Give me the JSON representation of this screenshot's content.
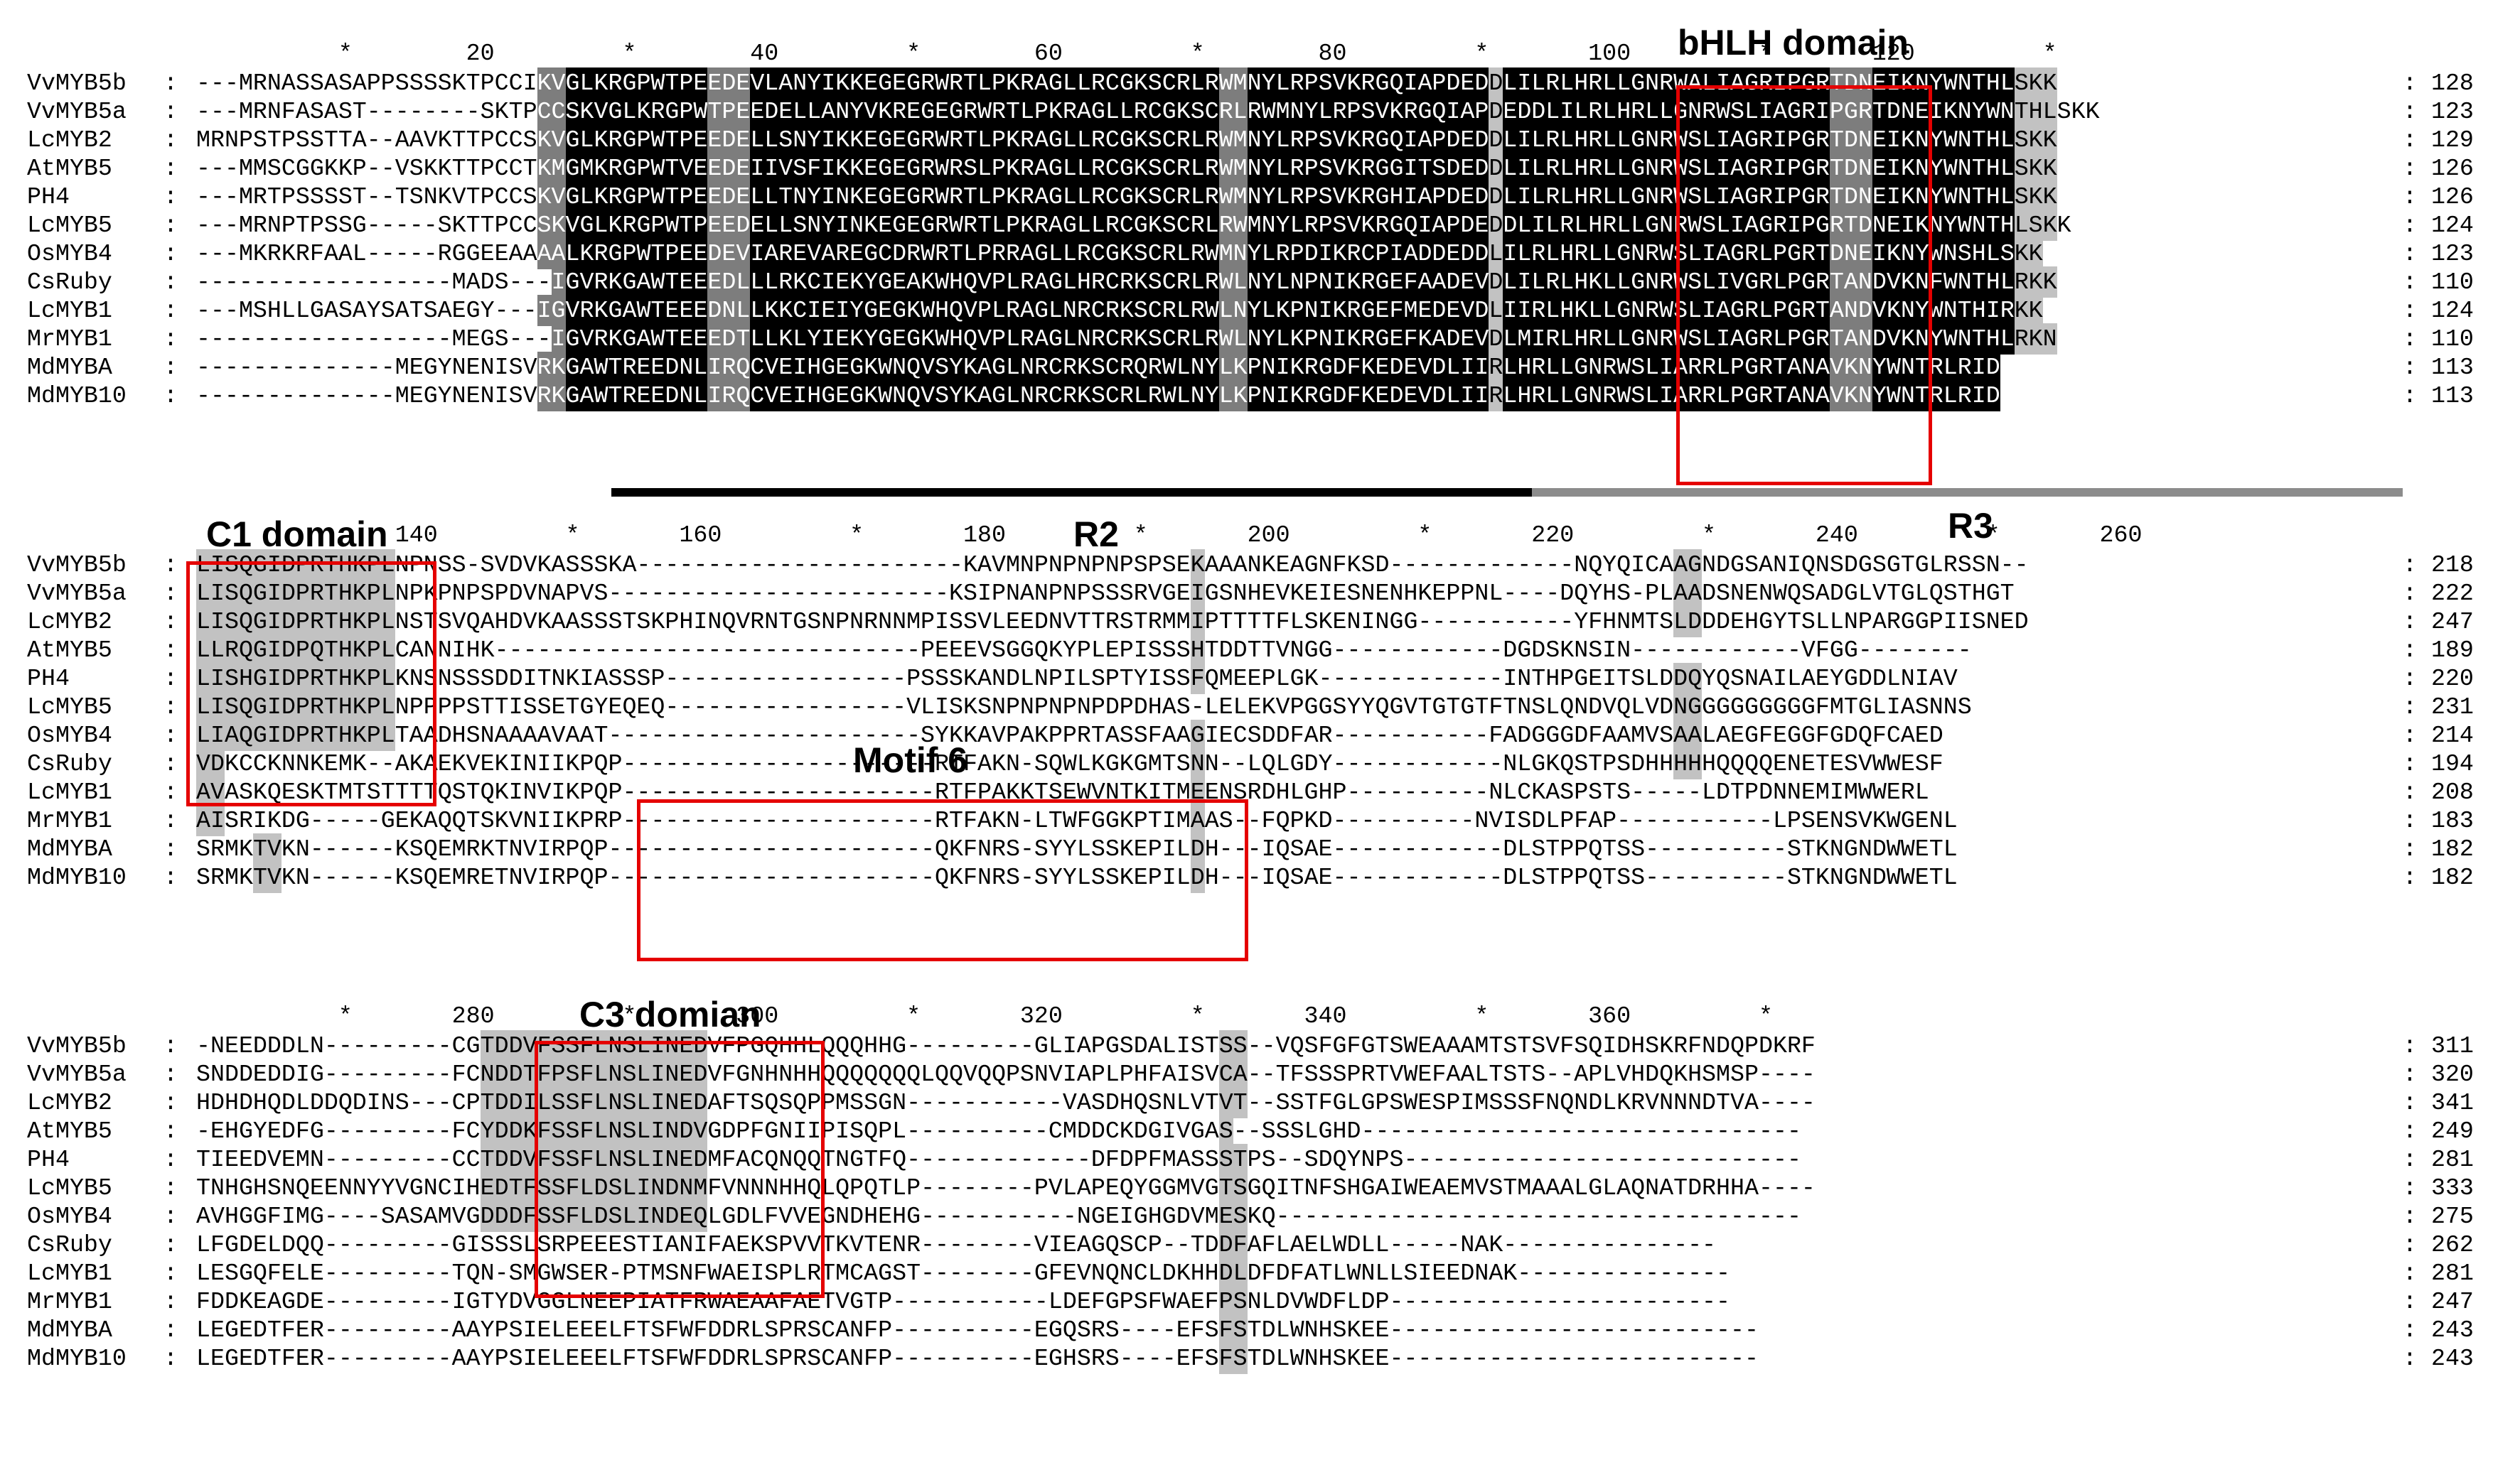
{
  "colors": {
    "identical": "#000000",
    "conserved": "#7d7d7d",
    "similar": "#c2c2c2",
    "box": "#e50000",
    "r2_bar": "#000000",
    "r3_bar": "#8c8c8c"
  },
  "labels": {
    "bhlh": "bHLH domain",
    "c1": "C1 domain",
    "r2": "R2",
    "r3": "R3",
    "motif6": "Motif 6",
    "c3": "C3 domian"
  },
  "blocks": [
    {
      "ruler": "          *        20         *        40         *        60         *        80         *       100         *       120         *",
      "names": [
        "VvMYB5b",
        "VvMYB5a",
        "LcMYB2",
        "AtMYB5",
        "PH4",
        "LcMYB5",
        "OsMYB4",
        "CsRuby",
        "LcMYB1",
        "MrMYB1",
        "MdMYBA",
        "MdMYB10"
      ],
      "sequences": [
        "---MRNASSASAPPSSSSKTPCCIKVGLKRGPWTPEEDEVLANYIKKEGEGRWRTLPKRAGLLRCGKSCRLRWMNYLRPSVKRGQIAPDEDDLILRLHRLLGNRWALIAGRIPGRTDNEIKNYWNTHLSKK",
        "---MRNFASAST--------SKTPCCSKVGLKRGPWTPEEDELLANYVKREGEGRWRTLPKRAGLLRCGKSCRLRWMNYLRPSVKRGQIAPDEDDLILRLHRLLGNRWSLIAGRIPGRTDNEIKNYWNTHLSKK",
        "MRNPSTPSSTTA--AAVKTTPCCSKVGLKRGPWTPEEDELLSNYIKKEGEGRWRTLPKRAGLLRCGKSCRLRWMNYLRPSVKRGQIAPDEDDLILRLHRLLGNRWSLIAGRIPGRTDNEIKNYWNTHLSKK",
        "---MMSCGGKKP--VSKKTTPCCTKMGMKRGPWTVEEDEIIVSFIKKEGEGRWRSLPKRAGLLRCGKSCRLRWMNYLRPSVKRGGITSDEDDLILRLHRLLGNRWSLIAGRIPGRTDNEIKNYWNTHLSKK",
        "---MRTPSSSST--TSNKVTPCCSKVGLKRGPWTPEEDELLTNYINKEGEGRWRTLPKRAGLLRCGKSCRLRWMNYLRPSVKRGHIAPDEDDLILRLHRLLGNRWSLIAGRIPGRTDNEIKNYWNTHLSKK",
        "---MRNPTPSSG-----SKTTPCCSKVGLKRGPWTPEEDELLSNYINKEGEGRWRTLPKRAGLLRCGKSCRLRWMNYLRPSVKRGQIAPDEDDLILRLHRLLGNRWSLIAGRIPGRTDNEIKNYWNTHLSKK",
        "---MKRKRFAAL-----RGGEEAAAALKRGPWTPEEDEVIAREVAREGCDRWRTLPRRAGLLRCGKSCRLRWMNYLRPDIKRCPIADDEDDLILRLHRLLGNRWSLIAGRLPGRTDNEIKNYWNSHLSKK",
        "------------------MADS---IGVRKGAWTEEEDLLLRKCIEKYGEAKWHQVPLRAGLHRCRKSCRLRWLNYLNPNIKRGEFAADEVDLILRLHKLLGNRWSLIVGRLPGRTANDVKNFWNTHLRKK",
        "---MSHLLGASAYSATSAEGY---IGVRKGAWTEEEDNLLKKCIEIYGEGKWHQVPLRAGLNRCRKSCRLRWLNYLKPNIKRGEFMEDEVDLIIRLHKLLGNRWSLIAGRLPGRTANDVKNYWNTHIRKK",
        "------------------MEGS---IGVRKGAWTEEEDTLLKLYIEKYGEGKWHQVPLRAGLNRCRKSCRLRWLNYLKPNIKRGEFKADEVDLMIRLHRLLGNRWSLIAGRLPGRTANDVKNYWNTHLRKN",
        "--------------MEGYNENISVRKGAWTREEDNLIRQCVEIHGEGKWNQVSYKAGLNRCRKSCRQRWLNYLKPNIKRGDFKEDEVDLIIRLHRLLGNRWSLIARRLPGRTANAVKNYWNTRLRID",
        "--------------MEGYNENISVRKGAWTREEDNLIRQCVEIHGEGKWNQVSYKAGLNRCRKSCRLRWLNYLKPNIKRGDFKEDEVDLIIRLHRLLGNRWSLIARRLPGRTANAVKNYWNTRLRID"
      ],
      "counts": [
        128,
        123,
        129,
        126,
        126,
        124,
        123,
        110,
        124,
        110,
        113,
        113
      ]
    },
    {
      "ruler": "              140         *       160         *       180         *       200         *       220         *       240         *       260",
      "names": [
        "VvMYB5b",
        "VvMYB5a",
        "LcMYB2",
        "AtMYB5",
        "PH4",
        "LcMYB5",
        "OsMYB4",
        "CsRuby",
        "LcMYB1",
        "MrMYB1",
        "MdMYBA",
        "MdMYB10"
      ],
      "sequences": [
        "LISQGIDPRTHKPLNPNSS-SVDVKASSSKA-----------------------KAVMNPNPNPNPSPSEKAAANKEAGNFKSD-------------NQYQICAAGNDGSANIQNSDGSGTGLRSSN--",
        "LISQGIDPRTHKPLNPKPNPSPDVNAPVS------------------------KSIPNANPNPSSSRVGEIGSNHEVKEIESNENHKEPPNL----DQYHS-PLAADSNENWQSADGLVTGLQSTHGT",
        "LISQGIDPRTHKPLNSTSVQAHDVKAASSSTSKPHINQVRNTGSNPNRNNMPISSVLEEDNVTTRSTRMMIPTTTTFLSKENINGG-----------YFHNMTSLDDDEHGYTSLLNPARGGPIISNED",
        "LLRQGIDPQTHKPLCANNIHK------------------------------PEEEVSGGQKYPLEPISSSHTDDTTVNGG------------DGDSKNSIN------------VFGG--------",
        "LISHGIDPRTHKPLKNSNSSSDDITNKIASSSP-----------------PSSSKANDLNPILSPTYISSFQMEEPLGK-------------INTHPGEITSLDDQYQSNAILAEYGDDLNIAV",
        "LISQGIDPRTHKPLNPPPPSTTISSETGYEQEQ-----------------VLISKSNPNPNPNPDPDHAS-LELEKVPGGSYYQGVTGTGTFTNSLQNDVQLVDNGGGGGGGGGFMTGLIASNNS",
        "LIAQGIDPRTHKPLTAADHSNAAAAVAAT----------------------SYKKAVPAKPPRTASSFAAGIECSDDFAR-----------FADGGGDFAAMVSAALAEGFEGGFGDQFCAED",
        "VDKCCKNNKEMK--AKAEKVEKINIIKPQP----------------------RTFAKN-SQWLKGKGMTSNN--LQLGDY------------NLGKQSTPSDHHHHHQQQQENETESVWWESF",
        "AVASKQESKTMTSTTTTQSTQKINVIKPQP----------------------RTFPAKKTSEWVNTKITMEENSRDHLGHP----------NLCKASPSTS-----LDTPDNNEMIMWWERL",
        "AISRIKDG-----GEKAQQTSKVNIIKPRP----------------------RTFAKN-LTWFGGKPTIMAAS--FQPKD----------NVISDLPFAP-----------LPSENSVKWGENL",
        "SRMKTVKN------KSQEMRKTNVIRPQP-----------------------QKFNRS-SYYLSSKEPILDH---IQSAE------------DLSTPPQTSS----------STKNGNDWWETL",
        "SRMKTVKN------KSQEMRETNVIRPQP-----------------------QKFNRS-SYYLSSKEPILDH---IQSAE------------DLSTPPQTSS----------STKNGNDWWETL"
      ],
      "counts": [
        218,
        222,
        247,
        189,
        220,
        231,
        214,
        194,
        208,
        183,
        182,
        182
      ]
    },
    {
      "ruler": "          *       280         *       300         *       320         *       340         *       360         *",
      "names": [
        "VvMYB5b",
        "VvMYB5a",
        "LcMYB2",
        "AtMYB5",
        "PH4",
        "LcMYB5",
        "OsMYB4",
        "CsRuby",
        "LcMYB1",
        "MrMYB1",
        "MdMYBA",
        "MdMYB10"
      ],
      "sequences": [
        "-NEEDDDLN---------CGTDDVFSSFLNSLINEDVFPGQHHLQQQHHG---------GLIAPGSDALISTSS--VQSFGFGTSWEAAAMTSTSVFSQIDHSKRFNDQPDKRF",
        "SNDDEDDIG---------FCNDDTFPSFLNSLINEDVFGNHNHHQQQQQQQLQQVQQPSNVIAPLPHFAISVCA--TFSSSPRTVWEFAALTSTS--APLVHDQKHSMSP----",
        "HDHDHQDLDDQDINS---CPTDDILSSFLNSLINEDAFTSQSQPPMSSGN-----------VASDHQSNLVTVT--SSTFGLGPSWESPIMSSSFNQNDLKRVNNNDTVA----",
        "-EHGYEDFG---------FCYDDKFSSFLNSLINDVGDPFGNIIPISQPL----------CMDDCKDGIVGAS--SSSLGHD-------------------------------",
        "TIEEDVEMN---------CCTDDVFSSFLNSLINEDMFACQNQQTNGTFQ-------------DFDPFMASSSTPS--SDQYNPS----------------------------",
        "TNHGHSNQEENNYYVGNCIHEDTFSSFLDSLINDNMFVNNNHHQLQPQTLP--------PVLAPEQYGGMVGTSGQITNFSHGAIWEAEMVSTMAAALGLAQNATDRHHA----",
        "AVHGGFIMG----SASAMVGDDDFSSFLDSLINDEQLGDLFVVEGNDHEHG-----------NGEIGHGDVMESKQ-------------------------------------",
        "LFGDELDQQ---------GISSSLSRPEEESTIANIFAEKSPVVTKVTENR--------VIEAGQSCP--TDDFAFLAELWDLL-----NAK---------------",
        "LESGQFELE---------TQN-SMGWSER-PTMSNFWAEISPLRTMCAGST--------GFEVNQNCLDKHHDLDFDFATLWNLLSIEEDNAK---------------",
        "FDDKEAGDE---------IGTYDVGGLNEEPIATFRWAEAAFAETVGTP-----------LDEFGPSFWAEFPSNLDVWDFLDP------------------------",
        "LEGEDTFER---------AAYPSIELEEELFTSFWFDDRLSPRSCANFP----------EGQSRS----EFSFSTDLWNHSKEE--------------------------",
        "LEGEDTFER---------AAYPSIELEEELFTSFWFDDRLSPRSCANFP----------EGHSRS----EFSFSTDLWNHSKEE--------------------------"
      ],
      "counts": [
        311,
        320,
        341,
        249,
        281,
        333,
        275,
        262,
        281,
        247,
        243,
        243
      ]
    }
  ]
}
